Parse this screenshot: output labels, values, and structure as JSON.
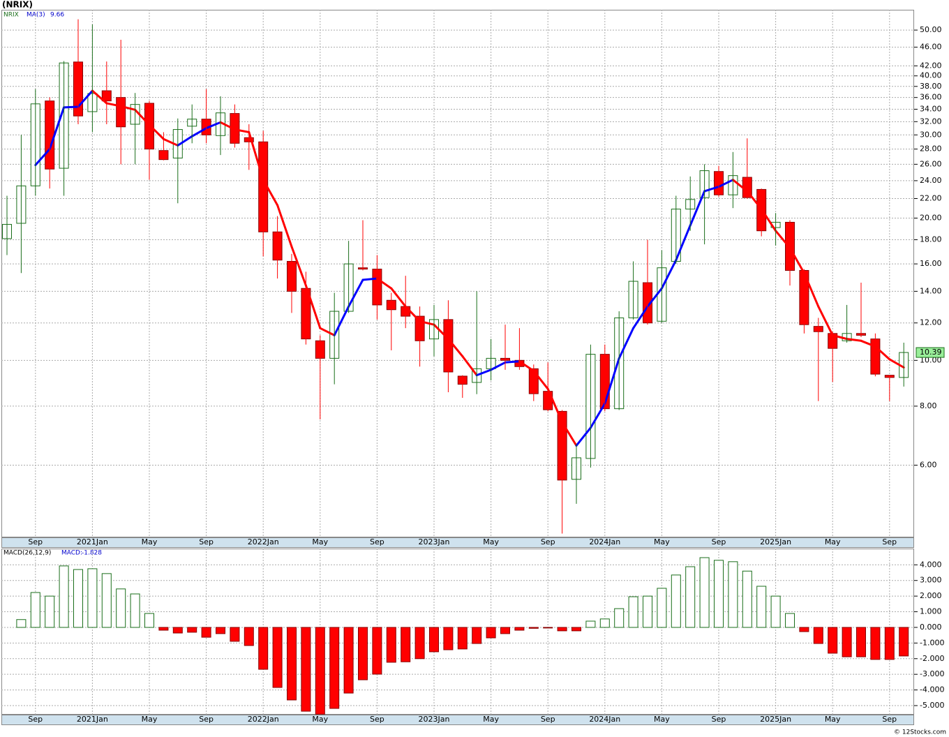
{
  "chart_data": [
    {
      "type": "candlestick",
      "title": "(NRIX)",
      "symbol": "NRIX",
      "categories": [
        null,
        null,
        "Sep",
        null,
        null,
        null,
        "2021Jan",
        null,
        null,
        null,
        "May",
        null,
        null,
        null,
        "Sep",
        null,
        null,
        null,
        "2022Jan",
        null,
        null,
        null,
        "May",
        null,
        null,
        null,
        "Sep",
        null,
        null,
        null,
        "2023Jan",
        null,
        null,
        null,
        "May",
        null,
        null,
        null,
        "Sep",
        null,
        null,
        null,
        "2024Jan",
        null,
        null,
        null,
        "May",
        null,
        null,
        null,
        "Sep",
        null,
        null,
        null,
        "2025Jan",
        null,
        null,
        null,
        "May",
        null,
        null,
        null,
        "Sep",
        null
      ],
      "open": [
        18.1,
        19.5,
        23.4,
        35.4,
        25.5,
        42.8,
        33.6,
        37.2,
        36.0,
        31.6,
        35.0,
        27.8,
        26.8,
        31.3,
        32.4,
        29.9,
        33.3,
        29.6,
        29.0,
        18.7,
        16.2,
        14.2,
        11.0,
        10.1,
        12.7,
        15.7,
        15.6,
        13.4,
        13.0,
        12.4,
        11.1,
        12.2,
        9.26,
        8.98,
        9.6,
        10.1,
        10.0,
        9.6,
        8.6,
        7.8,
        5.6,
        6.2,
        10.3,
        7.9,
        12.3,
        14.6,
        12.1,
        16.2,
        20.9,
        22.1,
        25.1,
        22.4,
        24.4,
        23.0,
        19.1,
        19.6,
        15.5,
        11.8,
        11.4,
        11.0,
        11.4,
        11.1,
        9.3,
        9.2
      ],
      "high": [
        22.3,
        30.0,
        37.5,
        36.0,
        43.0,
        52.7,
        51.4,
        42.9,
        47.7,
        36.8,
        35.4,
        30.4,
        32.5,
        34.8,
        37.5,
        36.2,
        34.8,
        31.6,
        30.6,
        20.2,
        16.8,
        15.4,
        11.3,
        13.9,
        17.9,
        19.8,
        16.7,
        13.9,
        15.1,
        13.0,
        13.1,
        13.4,
        9.3,
        14.0,
        11.1,
        11.9,
        11.7,
        9.8,
        9.9,
        7.85,
        6.66,
        10.8,
        10.8,
        12.7,
        16.2,
        18.0,
        17.1,
        22.3,
        24.5,
        26.0,
        25.8,
        27.6,
        29.5,
        23.1,
        20.5,
        19.8,
        15.6,
        12.3,
        11.5,
        13.1,
        14.6,
        11.4,
        9.3,
        10.9
      ],
      "low": [
        16.7,
        15.3,
        22.3,
        23.1,
        22.3,
        31.6,
        30.4,
        31.6,
        26.0,
        26.0,
        24.1,
        26.5,
        21.5,
        28.8,
        28.8,
        27.2,
        28.2,
        25.3,
        16.6,
        14.9,
        12.6,
        10.8,
        7.5,
        8.9,
        12.6,
        15.5,
        12.2,
        10.5,
        11.7,
        9.7,
        10.2,
        8.56,
        8.33,
        8.48,
        9.07,
        9.55,
        9.55,
        8.2,
        7.8,
        4.3,
        4.97,
        5.93,
        7.8,
        7.85,
        12.2,
        11.9,
        12.0,
        16.0,
        18.8,
        17.6,
        22.2,
        21.0,
        22.0,
        18.3,
        17.5,
        14.4,
        11.4,
        8.2,
        9.0,
        10.9,
        11.2,
        9.25,
        8.2,
        8.8
      ],
      "close": [
        19.4,
        23.4,
        34.9,
        25.4,
        42.6,
        32.9,
        36.7,
        35.4,
        31.2,
        34.8,
        28.0,
        26.6,
        30.8,
        32.4,
        30.0,
        33.4,
        28.8,
        29.0,
        18.7,
        16.3,
        14.0,
        11.1,
        10.1,
        12.7,
        16.0,
        15.6,
        13.1,
        12.8,
        12.4,
        11.0,
        12.2,
        9.45,
        8.9,
        9.6,
        10.1,
        10.0,
        9.7,
        8.5,
        7.86,
        5.58,
        6.22,
        10.3,
        7.9,
        12.3,
        14.7,
        12.0,
        15.7,
        20.9,
        21.9,
        25.2,
        22.4,
        24.6,
        22.1,
        18.8,
        19.6,
        15.5,
        11.9,
        11.5,
        10.6,
        11.4,
        11.3,
        9.35,
        9.2,
        10.39
      ],
      "ma": {
        "name": "MA(3)",
        "values": [
          null,
          null,
          25.9,
          28.0,
          34.3,
          34.4,
          37.2,
          35.0,
          34.5,
          33.9,
          31.5,
          29.4,
          28.5,
          29.8,
          31.0,
          31.9,
          30.8,
          30.4,
          24.1,
          21.3,
          17.4,
          14.4,
          11.7,
          11.3,
          13.0,
          14.8,
          14.9,
          14.2,
          13.0,
          12.1,
          11.9,
          11.1,
          10.2,
          9.3,
          9.55,
          9.9,
          9.95,
          9.5,
          8.7,
          7.4,
          6.6,
          7.2,
          8.1,
          10.1,
          11.7,
          13.0,
          14.2,
          16.3,
          19.3,
          22.8,
          23.3,
          24.1,
          22.8,
          20.9,
          18.8,
          17.3,
          15.3,
          13.0,
          11.3,
          11.1,
          11.0,
          10.7,
          10.05,
          9.66
        ]
      },
      "ylim": [
        4.22,
        55.2
      ],
      "log_scale": true,
      "grid": true,
      "yticks": [
        {
          "value": 6,
          "label": "6.00"
        },
        {
          "value": 8,
          "label": "8.00"
        },
        {
          "value": 10,
          "label": "10.00"
        },
        {
          "value": 12,
          "label": "12.00"
        },
        {
          "value": 14,
          "label": "14.00"
        },
        {
          "value": 16,
          "label": "16.00"
        },
        {
          "value": 18,
          "label": "18.00"
        },
        {
          "value": 20,
          "label": "20.00"
        },
        {
          "value": 22,
          "label": "22.00"
        },
        {
          "value": 24,
          "label": "24.00"
        },
        {
          "value": 26,
          "label": "26.00"
        },
        {
          "value": 28,
          "label": "28.00"
        },
        {
          "value": 30,
          "label": "30.00"
        },
        {
          "value": 32,
          "label": "32.00"
        },
        {
          "value": 34,
          "label": "34.00"
        },
        {
          "value": 36,
          "label": "36.00"
        },
        {
          "value": 38,
          "label": "38.00"
        },
        {
          "value": 40,
          "label": "40.00"
        },
        {
          "value": 42,
          "label": "42.00"
        },
        {
          "value": 46,
          "label": "46.00"
        },
        {
          "value": 50,
          "label": "50.00"
        }
      ],
      "up_color": "#1a6e1a",
      "down_color": "#ff0000",
      "ma_up_color": "#0000ff",
      "ma_down_color": "#ff0000"
    },
    {
      "type": "bar",
      "title": "MACD(26,12,9)",
      "value_name": "MACD:",
      "categories": [
        null,
        null,
        "Sep",
        null,
        null,
        null,
        "2021Jan",
        null,
        null,
        null,
        "May",
        null,
        null,
        null,
        "Sep",
        null,
        null,
        null,
        "2022Jan",
        null,
        null,
        null,
        "May",
        null,
        null,
        null,
        "Sep",
        null,
        null,
        null,
        "2023Jan",
        null,
        null,
        null,
        "May",
        null,
        null,
        null,
        "Sep",
        null,
        null,
        null,
        "2024Jan",
        null,
        null,
        null,
        "May",
        null,
        null,
        null,
        "Sep",
        null,
        null,
        null,
        "2025Jan",
        null,
        null,
        null,
        "May",
        null,
        null,
        null,
        "Sep",
        null
      ],
      "values": [
        null,
        0.5,
        2.23,
        2.0,
        3.93,
        3.7,
        3.75,
        3.44,
        2.46,
        2.14,
        0.89,
        -0.18,
        -0.36,
        -0.31,
        -0.63,
        -0.4,
        -0.89,
        -1.16,
        -2.68,
        -3.84,
        -4.64,
        -5.36,
        -5.55,
        -5.18,
        -4.2,
        -3.35,
        -2.99,
        -2.23,
        -2.2,
        -2.0,
        -1.56,
        -1.43,
        -1.38,
        -1.03,
        -0.67,
        -0.4,
        -0.18,
        -0.06,
        -0.04,
        -0.22,
        -0.22,
        0.4,
        0.54,
        1.2,
        1.96,
        2.0,
        2.5,
        3.35,
        3.88,
        4.46,
        4.29,
        4.2,
        3.6,
        2.63,
        2.0,
        0.89,
        -0.27,
        -1.03,
        -1.65,
        -1.88,
        -1.88,
        -2.05,
        -2.05,
        -1.828
      ],
      "ylim": [
        -5.58,
        5.04
      ],
      "grid": true,
      "yticks": [
        {
          "value": -5,
          "label": "-5.000"
        },
        {
          "value": -4,
          "label": "-4.000"
        },
        {
          "value": -3,
          "label": "-3.000"
        },
        {
          "value": -2,
          "label": "-2.000"
        },
        {
          "value": -1,
          "label": "-1.000"
        },
        {
          "value": 0,
          "label": "0.000"
        },
        {
          "value": 1,
          "label": "1.000"
        },
        {
          "value": 2,
          "label": "2.000"
        },
        {
          "value": 3,
          "label": "3.000"
        },
        {
          "value": 4,
          "label": "4.000"
        }
      ],
      "up_color": "#1a6e1a",
      "down_color": "#ff0000"
    }
  ],
  "footer": "© 12Stocks.com"
}
